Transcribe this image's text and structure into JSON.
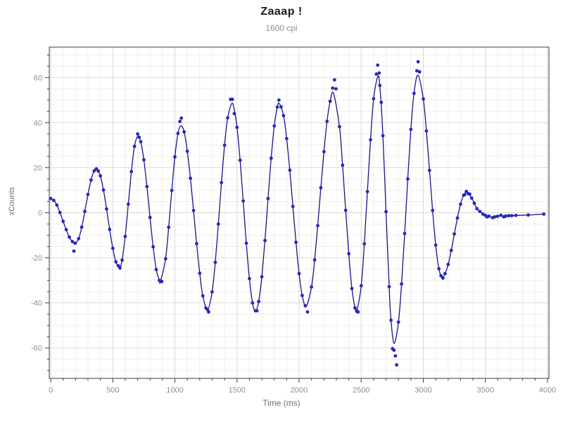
{
  "header": {
    "title": "Zaaap !",
    "subtitle": "1600 cpi"
  },
  "chart_data": {
    "type": "scatter",
    "title": "Zaaap !",
    "subtitle": "1600 cpi",
    "xlabel": "Time (ms)",
    "ylabel": "xCounts",
    "xlim": [
      0,
      4000
    ],
    "ylim": [
      -73.5,
      73.5
    ],
    "x_major_step": 500,
    "x_minor_step": 100,
    "y_major_step": 20,
    "y_minor_step": 5,
    "grid": "on",
    "legend": "none",
    "colors": {
      "dot": "#2626c4",
      "line": "#15158a",
      "grid_major": "#d9d9d9",
      "grid_minor": "#f0efe8",
      "axis_border": "#3c3c3c",
      "tick": "#3c3c3c",
      "tick_label": "#8f8f8f",
      "axis_label": "#6e6e6e",
      "background": "#ffffff"
    },
    "points": [
      [
        0,
        6.3
      ],
      [
        25,
        5.5
      ],
      [
        50,
        3.4
      ],
      [
        75,
        0.1
      ],
      [
        100,
        -3.8
      ],
      [
        125,
        -7.5
      ],
      [
        150,
        -10.8
      ],
      [
        175,
        -12.8
      ],
      [
        187,
        -17.0
      ],
      [
        198,
        -13.5
      ],
      [
        225,
        -11.5
      ],
      [
        250,
        -6.4
      ],
      [
        275,
        0.6
      ],
      [
        300,
        8.1
      ],
      [
        325,
        14.5
      ],
      [
        350,
        18.6
      ],
      [
        368,
        19.5
      ],
      [
        383,
        18.5
      ],
      [
        400,
        16.4
      ],
      [
        425,
        10.1
      ],
      [
        450,
        1.7
      ],
      [
        475,
        -7.4
      ],
      [
        500,
        -15.8
      ],
      [
        525,
        -21.8
      ],
      [
        545,
        -23.5
      ],
      [
        558,
        -24.5
      ],
      [
        575,
        -21.0
      ],
      [
        600,
        -10.5
      ],
      [
        625,
        3.8
      ],
      [
        650,
        18.3
      ],
      [
        675,
        29.5
      ],
      [
        700,
        35.0
      ],
      [
        712,
        33.5
      ],
      [
        725,
        31.5
      ],
      [
        750,
        23.5
      ],
      [
        775,
        11.6
      ],
      [
        800,
        -2.1
      ],
      [
        825,
        -15.1
      ],
      [
        850,
        -25.2
      ],
      [
        875,
        -30.0
      ],
      [
        884,
        -30.5
      ],
      [
        895,
        -30.5
      ],
      [
        925,
        -20.4
      ],
      [
        950,
        -6.4
      ],
      [
        975,
        9.9
      ],
      [
        1000,
        24.8
      ],
      [
        1025,
        35.2
      ],
      [
        1040,
        40.5
      ],
      [
        1052,
        42.0
      ],
      [
        1075,
        35.9
      ],
      [
        1100,
        27.3
      ],
      [
        1125,
        15.3
      ],
      [
        1150,
        1.0
      ],
      [
        1175,
        -13.7
      ],
      [
        1200,
        -26.8
      ],
      [
        1225,
        -36.9
      ],
      [
        1250,
        -42.3
      ],
      [
        1263,
        -43.0
      ],
      [
        1272,
        -44.0
      ],
      [
        1300,
        -35.1
      ],
      [
        1325,
        -22.0
      ],
      [
        1350,
        -5.0
      ],
      [
        1375,
        13.4
      ],
      [
        1400,
        30.0
      ],
      [
        1425,
        42.1
      ],
      [
        1448,
        50.3
      ],
      [
        1463,
        50.3
      ],
      [
        1478,
        44.0
      ],
      [
        1500,
        37.9
      ],
      [
        1525,
        23.3
      ],
      [
        1550,
        5.2
      ],
      [
        1575,
        -13.5
      ],
      [
        1600,
        -29.2
      ],
      [
        1625,
        -40.0
      ],
      [
        1649,
        -43.5
      ],
      [
        1660,
        -43.5
      ],
      [
        1675,
        -39.4
      ],
      [
        1700,
        -28.4
      ],
      [
        1725,
        -12.3
      ],
      [
        1750,
        6.3
      ],
      [
        1775,
        24.2
      ],
      [
        1800,
        38.5
      ],
      [
        1825,
        46.9
      ],
      [
        1838,
        50.0
      ],
      [
        1855,
        47.0
      ],
      [
        1875,
        43.1
      ],
      [
        1900,
        32.9
      ],
      [
        1925,
        18.9
      ],
      [
        1950,
        2.8
      ],
      [
        1975,
        -13.1
      ],
      [
        2000,
        -27.0
      ],
      [
        2025,
        -36.7
      ],
      [
        2050,
        -41.3
      ],
      [
        2068,
        -44.0
      ],
      [
        2100,
        -32.9
      ],
      [
        2125,
        -20.9
      ],
      [
        2150,
        -5.7
      ],
      [
        2175,
        11.1
      ],
      [
        2200,
        27.1
      ],
      [
        2225,
        40.6
      ],
      [
        2250,
        49.5
      ],
      [
        2270,
        55.3
      ],
      [
        2285,
        59.0
      ],
      [
        2297,
        55.0
      ],
      [
        2325,
        38.2
      ],
      [
        2350,
        21.1
      ],
      [
        2375,
        1.1
      ],
      [
        2400,
        -18.2
      ],
      [
        2425,
        -33.6
      ],
      [
        2450,
        -42.2
      ],
      [
        2465,
        -43.5
      ],
      [
        2475,
        -44.0
      ],
      [
        2500,
        -32.4
      ],
      [
        2525,
        -13.8
      ],
      [
        2550,
        9.4
      ],
      [
        2575,
        32.4
      ],
      [
        2600,
        50.6
      ],
      [
        2622,
        61.5
      ],
      [
        2633,
        65.5
      ],
      [
        2645,
        62.0
      ],
      [
        2650,
        56.5
      ],
      [
        2662,
        49.0
      ],
      [
        2675,
        34.2
      ],
      [
        2700,
        0.5
      ],
      [
        2725,
        -32.8
      ],
      [
        2740,
        -47.7
      ],
      [
        2752,
        -60.3
      ],
      [
        2764,
        -61.0
      ],
      [
        2775,
        -63.5
      ],
      [
        2785,
        -67.5
      ],
      [
        2800,
        -48.5
      ],
      [
        2825,
        -31.6
      ],
      [
        2850,
        -9.2
      ],
      [
        2875,
        15.0
      ],
      [
        2900,
        37.0
      ],
      [
        2925,
        53.0
      ],
      [
        2948,
        63.0
      ],
      [
        2958,
        67.0
      ],
      [
        2970,
        62.5
      ],
      [
        3000,
        50.5
      ],
      [
        3025,
        36.3
      ],
      [
        3050,
        18.8
      ],
      [
        3075,
        1.0
      ],
      [
        3100,
        -14.4
      ],
      [
        3125,
        -24.8
      ],
      [
        3142,
        -28.0
      ],
      [
        3158,
        -29.0
      ],
      [
        3175,
        -27.0
      ],
      [
        3200,
        -22.9
      ],
      [
        3225,
        -16.7
      ],
      [
        3250,
        -9.4
      ],
      [
        3275,
        -2.3
      ],
      [
        3300,
        3.8
      ],
      [
        3325,
        7.8
      ],
      [
        3332,
        8.0
      ],
      [
        3347,
        9.5
      ],
      [
        3360,
        8.5
      ],
      [
        3374,
        8.3
      ],
      [
        3390,
        6.5
      ],
      [
        3410,
        4.2
      ],
      [
        3432,
        1.8
      ],
      [
        3455,
        0.6
      ],
      [
        3480,
        -0.6
      ],
      [
        3500,
        -1.2
      ],
      [
        3512,
        -1.8
      ],
      [
        3528,
        -1.5
      ],
      [
        3558,
        -2.2
      ],
      [
        3576,
        -1.8
      ],
      [
        3598,
        -1.6
      ],
      [
        3625,
        -1.1
      ],
      [
        3648,
        -1.8
      ],
      [
        3663,
        -1.5
      ],
      [
        3688,
        -1.3
      ],
      [
        3712,
        -1.3
      ],
      [
        3745,
        -1.2
      ],
      [
        3845,
        -1.0
      ],
      [
        3970,
        -0.6
      ]
    ],
    "curve": [
      [
        0,
        6.3
      ],
      [
        25,
        5.5
      ],
      [
        50,
        3.4
      ],
      [
        75,
        0.1
      ],
      [
        100,
        -3.8
      ],
      [
        125,
        -7.5
      ],
      [
        150,
        -10.8
      ],
      [
        175,
        -12.8
      ],
      [
        198,
        -13.5
      ],
      [
        225,
        -11.5
      ],
      [
        250,
        -6.4
      ],
      [
        275,
        0.6
      ],
      [
        300,
        8.1
      ],
      [
        325,
        14.5
      ],
      [
        350,
        18.6
      ],
      [
        368,
        19.5
      ],
      [
        400,
        16.4
      ],
      [
        425,
        10.1
      ],
      [
        450,
        1.7
      ],
      [
        475,
        -7.4
      ],
      [
        500,
        -15.8
      ],
      [
        525,
        -21.8
      ],
      [
        555,
        -24.5
      ],
      [
        575,
        -21.0
      ],
      [
        600,
        -10.5
      ],
      [
        625,
        3.8
      ],
      [
        650,
        18.3
      ],
      [
        675,
        29.5
      ],
      [
        702,
        34.0
      ],
      [
        725,
        31.5
      ],
      [
        750,
        23.5
      ],
      [
        775,
        11.6
      ],
      [
        800,
        -2.1
      ],
      [
        825,
        -15.1
      ],
      [
        850,
        -25.2
      ],
      [
        875,
        -30.0
      ],
      [
        884,
        -30.5
      ],
      [
        925,
        -20.4
      ],
      [
        950,
        -6.4
      ],
      [
        975,
        9.9
      ],
      [
        1000,
        24.8
      ],
      [
        1025,
        35.2
      ],
      [
        1048,
        38.5
      ],
      [
        1075,
        35.9
      ],
      [
        1100,
        27.3
      ],
      [
        1125,
        15.3
      ],
      [
        1150,
        1.0
      ],
      [
        1175,
        -13.7
      ],
      [
        1200,
        -26.8
      ],
      [
        1225,
        -36.9
      ],
      [
        1263,
        -43.0
      ],
      [
        1300,
        -35.1
      ],
      [
        1325,
        -22.0
      ],
      [
        1350,
        -5.0
      ],
      [
        1375,
        13.4
      ],
      [
        1400,
        30.0
      ],
      [
        1425,
        42.1
      ],
      [
        1458,
        48.5
      ],
      [
        1478,
        45.8
      ],
      [
        1500,
        37.9
      ],
      [
        1525,
        23.3
      ],
      [
        1550,
        5.2
      ],
      [
        1575,
        -13.5
      ],
      [
        1600,
        -29.2
      ],
      [
        1625,
        -40.0
      ],
      [
        1649,
        -43.5
      ],
      [
        1675,
        -39.4
      ],
      [
        1700,
        -28.4
      ],
      [
        1725,
        -12.3
      ],
      [
        1750,
        6.3
      ],
      [
        1775,
        24.2
      ],
      [
        1800,
        38.5
      ],
      [
        1825,
        46.9
      ],
      [
        1841,
        48.5
      ],
      [
        1875,
        43.1
      ],
      [
        1900,
        32.9
      ],
      [
        1925,
        18.9
      ],
      [
        1950,
        2.8
      ],
      [
        1975,
        -13.1
      ],
      [
        2000,
        -27.0
      ],
      [
        2025,
        -36.7
      ],
      [
        2057,
        -41.5
      ],
      [
        2100,
        -32.9
      ],
      [
        2125,
        -20.9
      ],
      [
        2150,
        -5.7
      ],
      [
        2175,
        11.1
      ],
      [
        2200,
        27.1
      ],
      [
        2225,
        40.6
      ],
      [
        2250,
        49.5
      ],
      [
        2277,
        53.0
      ],
      [
        2325,
        38.2
      ],
      [
        2350,
        21.1
      ],
      [
        2375,
        1.1
      ],
      [
        2400,
        -18.2
      ],
      [
        2425,
        -33.6
      ],
      [
        2450,
        -42.2
      ],
      [
        2464,
        -43.5
      ],
      [
        2500,
        -32.4
      ],
      [
        2525,
        -13.8
      ],
      [
        2550,
        9.4
      ],
      [
        2575,
        32.4
      ],
      [
        2600,
        50.6
      ],
      [
        2634,
        60.5
      ],
      [
        2650,
        56.2
      ],
      [
        2675,
        34.2
      ],
      [
        2700,
        0.5
      ],
      [
        2725,
        -32.8
      ],
      [
        2740,
        -47.7
      ],
      [
        2765,
        -58.0
      ],
      [
        2800,
        -48.5
      ],
      [
        2825,
        -31.6
      ],
      [
        2850,
        -9.2
      ],
      [
        2875,
        15.0
      ],
      [
        2900,
        37.0
      ],
      [
        2925,
        53.0
      ],
      [
        2957,
        61.0
      ],
      [
        3000,
        50.5
      ],
      [
        3025,
        36.3
      ],
      [
        3050,
        18.8
      ],
      [
        3075,
        1.0
      ],
      [
        3100,
        -14.4
      ],
      [
        3125,
        -24.8
      ],
      [
        3150,
        -28.5
      ],
      [
        3175,
        -27.0
      ],
      [
        3200,
        -22.9
      ],
      [
        3225,
        -16.7
      ],
      [
        3250,
        -9.4
      ],
      [
        3275,
        -2.3
      ],
      [
        3300,
        3.8
      ],
      [
        3325,
        7.8
      ],
      [
        3348,
        9.0
      ],
      [
        3390,
        6.5
      ],
      [
        3410,
        4.2
      ],
      [
        3432,
        1.8
      ],
      [
        3455,
        0.6
      ],
      [
        3480,
        -0.6
      ],
      [
        3500,
        -1.2
      ],
      [
        3512,
        -1.8
      ],
      [
        3528,
        -1.5
      ],
      [
        3558,
        -2.2
      ],
      [
        3576,
        -1.8
      ],
      [
        3598,
        -1.6
      ],
      [
        3625,
        -1.1
      ],
      [
        3648,
        -1.8
      ],
      [
        3663,
        -1.5
      ],
      [
        3688,
        -1.3
      ],
      [
        3712,
        -1.3
      ],
      [
        3745,
        -1.2
      ],
      [
        3845,
        -1.0
      ],
      [
        3970,
        -0.6
      ]
    ]
  }
}
